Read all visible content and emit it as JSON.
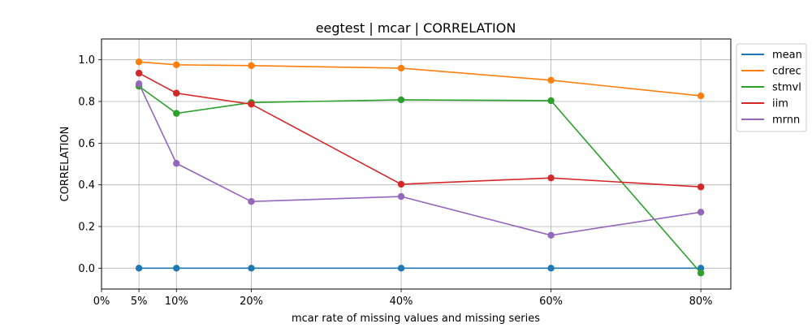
{
  "chart_data": {
    "type": "line",
    "title": "eegtest | mcar | CORRELATION",
    "xlabel": "mcar rate of missing values and missing series",
    "ylabel": "CORRELATION",
    "x": [
      5,
      10,
      20,
      40,
      60,
      80
    ],
    "xticks": [
      0,
      5,
      10,
      20,
      40,
      60,
      80
    ],
    "xtick_labels": [
      "0%",
      "5%",
      "10%",
      "20%",
      "40%",
      "60%",
      "80%"
    ],
    "xlim": [
      0,
      84
    ],
    "ylim": [
      -0.1,
      1.1
    ],
    "yticks": [
      0.0,
      0.2,
      0.4,
      0.6,
      0.8,
      1.0
    ],
    "ytick_labels": [
      "0.0",
      "0.2",
      "0.4",
      "0.6",
      "0.8",
      "1.0"
    ],
    "grid": true,
    "legend_position": "outside-right-top",
    "series": [
      {
        "name": "mean",
        "color": "#1f77b4",
        "values": [
          0.0,
          0.0,
          0.0,
          0.0,
          0.0,
          0.0
        ]
      },
      {
        "name": "cdrec",
        "color": "#ff7f0e",
        "values": [
          0.99,
          0.976,
          0.972,
          0.96,
          0.902,
          0.827
        ]
      },
      {
        "name": "stmvl",
        "color": "#2ca02c",
        "values": [
          0.873,
          0.743,
          0.795,
          0.808,
          0.804,
          -0.023
        ]
      },
      {
        "name": "iim",
        "color": "#d62728",
        "values": [
          0.936,
          0.84,
          0.787,
          0.403,
          0.433,
          0.39
        ]
      },
      {
        "name": "mrnn",
        "color": "#9467bd",
        "values": [
          0.885,
          0.503,
          0.32,
          0.344,
          0.158,
          0.269
        ]
      }
    ]
  }
}
